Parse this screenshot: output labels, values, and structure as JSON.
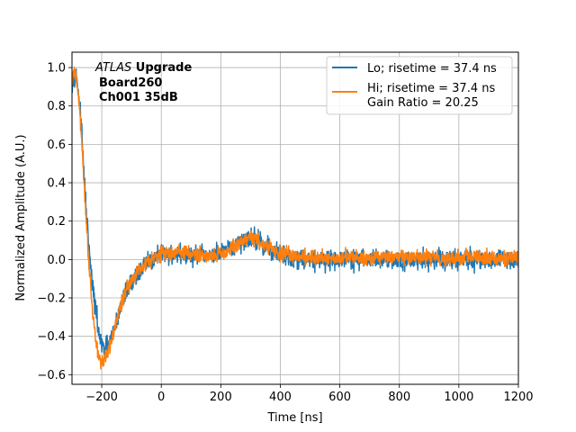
{
  "chart_data": {
    "type": "line",
    "xlabel": "Time [ns]",
    "ylabel": "Normalized Amplitude (A.U.)",
    "xlim": [
      -300,
      1200
    ],
    "ylim": [
      -0.65,
      1.08
    ],
    "xticks": [
      -200,
      0,
      200,
      400,
      600,
      800,
      1000,
      1200
    ],
    "yticks": [
      -0.6,
      -0.4,
      -0.2,
      0.0,
      0.2,
      0.4,
      0.6,
      0.8,
      1.0
    ],
    "grid": true,
    "legend_position": "top-right",
    "annotation": {
      "line1_italic": "ATLAS",
      "line1_bold": " Upgrade",
      "line2": "Board260",
      "line3": "Ch001 35dB"
    },
    "series": [
      {
        "name": "Lo; risetime = 37.4 ns",
        "color": "#1f77b4",
        "x": [
          -300,
          -290,
          -280,
          -270,
          -260,
          -250,
          -240,
          -230,
          -220,
          -210,
          -200,
          -190,
          -180,
          -170,
          -160,
          -150,
          -140,
          -130,
          -120,
          -100,
          -80,
          -60,
          -40,
          -20,
          0,
          50,
          100,
          150,
          200,
          250,
          275,
          300,
          325,
          350,
          400,
          450,
          500,
          600,
          700,
          800,
          900,
          1000,
          1100,
          1200
        ],
        "y": [
          0.92,
          0.98,
          0.9,
          0.72,
          0.45,
          0.2,
          0.0,
          -0.15,
          -0.27,
          -0.38,
          -0.45,
          -0.47,
          -0.45,
          -0.42,
          -0.37,
          -0.32,
          -0.27,
          -0.22,
          -0.17,
          -0.12,
          -0.07,
          -0.04,
          -0.01,
          0.01,
          0.03,
          0.03,
          0.02,
          0.02,
          0.03,
          0.07,
          0.1,
          0.12,
          0.1,
          0.07,
          0.03,
          0.01,
          0.0,
          0.0,
          0.0,
          0.0,
          0.0,
          0.0,
          0.0,
          0.0
        ],
        "noise": 0.04
      },
      {
        "name": "Hi; risetime = 37.4 ns\n Gain Ratio = 20.25",
        "color": "#ff7f0e",
        "x": [
          -300,
          -290,
          -280,
          -270,
          -260,
          -250,
          -240,
          -230,
          -220,
          -210,
          -200,
          -190,
          -180,
          -170,
          -160,
          -150,
          -140,
          -130,
          -120,
          -100,
          -80,
          -60,
          -40,
          -20,
          0,
          50,
          100,
          150,
          200,
          250,
          275,
          300,
          325,
          350,
          400,
          450,
          500,
          600,
          700,
          800,
          900,
          1000,
          1100,
          1200
        ],
        "y": [
          0.95,
          0.97,
          0.88,
          0.7,
          0.42,
          0.15,
          -0.08,
          -0.28,
          -0.42,
          -0.5,
          -0.54,
          -0.53,
          -0.49,
          -0.44,
          -0.38,
          -0.32,
          -0.26,
          -0.21,
          -0.16,
          -0.11,
          -0.06,
          -0.03,
          0.0,
          0.02,
          0.03,
          0.04,
          0.03,
          0.02,
          0.03,
          0.07,
          0.1,
          0.12,
          0.1,
          0.07,
          0.03,
          0.02,
          0.01,
          0.01,
          0.01,
          0.01,
          0.01,
          0.01,
          0.01,
          0.01
        ],
        "noise": 0.03
      }
    ]
  }
}
